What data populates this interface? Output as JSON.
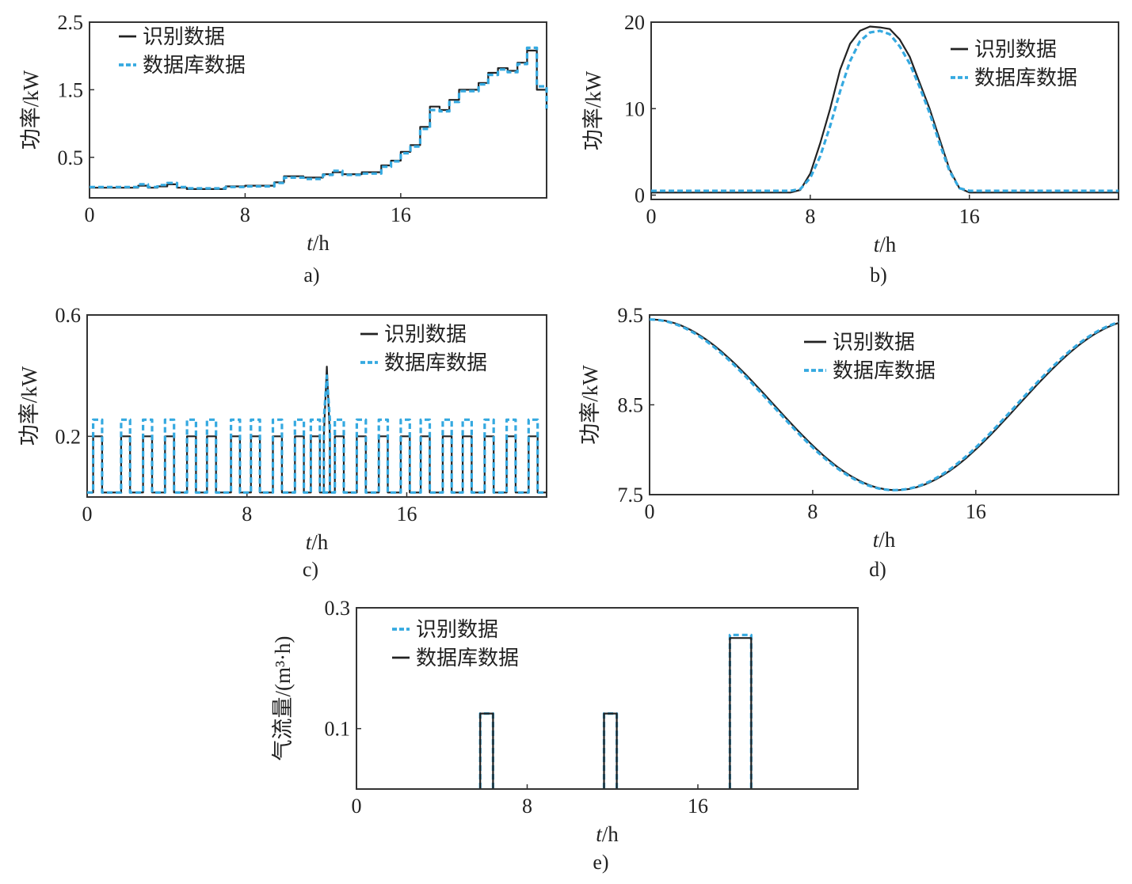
{
  "colors": {
    "identified": "#222222",
    "database": "#35a9e0",
    "frame": "#333333"
  },
  "chart_data": [
    {
      "id": "a",
      "caption": "a)",
      "type": "line",
      "xlabel_italic": "t",
      "xlabel_unit": "/h",
      "ylabel": "功率/kW",
      "xlim": [
        0,
        23.5
      ],
      "ylim": [
        -0.1,
        2.5
      ],
      "xticks": [
        0,
        8,
        16
      ],
      "yticks": [
        0.5,
        1.5,
        2.5
      ],
      "legend": [
        "识别数据",
        "数据库数据"
      ],
      "series": [
        {
          "name": "识别数据",
          "style": "identified",
          "x": [
            0,
            1,
            2,
            2.5,
            3,
            3.5,
            4,
            4.5,
            5,
            6,
            7,
            8,
            9,
            9.5,
            10,
            11,
            12,
            12.5,
            13,
            14,
            15,
            15.5,
            16,
            16.5,
            17,
            17.5,
            18,
            18.5,
            19,
            20,
            20.5,
            21,
            21.5,
            22,
            22.5,
            23,
            23.5
          ],
          "y": [
            0.05,
            0.05,
            0.05,
            0.08,
            0.05,
            0.07,
            0.1,
            0.05,
            0.03,
            0.03,
            0.07,
            0.08,
            0.08,
            0.13,
            0.22,
            0.2,
            0.25,
            0.28,
            0.25,
            0.28,
            0.38,
            0.45,
            0.58,
            0.68,
            0.95,
            1.25,
            1.2,
            1.35,
            1.5,
            1.6,
            1.75,
            1.82,
            1.78,
            1.9,
            2.08,
            1.5,
            1.2
          ]
        },
        {
          "name": "数据库数据",
          "style": "database",
          "x": [
            0,
            1,
            2,
            2.5,
            3,
            3.5,
            4,
            4.5,
            5,
            6,
            7,
            8,
            9,
            9.5,
            10,
            11,
            12,
            12.5,
            13,
            14,
            15,
            15.5,
            16,
            16.5,
            17,
            17.5,
            18,
            18.5,
            19,
            20,
            20.5,
            21,
            21.5,
            22,
            22.5,
            23,
            23.5
          ],
          "y": [
            0.06,
            0.06,
            0.06,
            0.1,
            0.06,
            0.09,
            0.12,
            0.06,
            0.04,
            0.04,
            0.06,
            0.07,
            0.07,
            0.12,
            0.2,
            0.18,
            0.24,
            0.3,
            0.24,
            0.26,
            0.36,
            0.44,
            0.56,
            0.66,
            0.92,
            1.2,
            1.18,
            1.32,
            1.48,
            1.58,
            1.72,
            1.8,
            1.76,
            1.88,
            2.12,
            1.55,
            1.22
          ]
        }
      ]
    },
    {
      "id": "b",
      "caption": "b)",
      "type": "line",
      "xlabel_italic": "t",
      "xlabel_unit": "/h",
      "ylabel": "功率/kW",
      "xlim": [
        0,
        23.5
      ],
      "ylim": [
        -0.5,
        20
      ],
      "xticks": [
        0,
        8,
        16
      ],
      "yticks": [
        0,
        10,
        20
      ],
      "legend": [
        "识别数据",
        "数据库数据"
      ],
      "series": [
        {
          "name": "识别数据",
          "style": "identified",
          "x": [
            0,
            7,
            7.5,
            8,
            8.5,
            9,
            9.5,
            10,
            10.5,
            11,
            11.5,
            12,
            12.5,
            13,
            13.5,
            14,
            14.5,
            15,
            15.5,
            16,
            23.5
          ],
          "y": [
            0.3,
            0.3,
            0.6,
            2.5,
            6,
            10,
            14.5,
            17.5,
            19,
            19.5,
            19.4,
            19.2,
            18,
            16,
            13,
            10,
            6.5,
            3,
            0.8,
            0.3,
            0.3
          ]
        },
        {
          "name": "数据库数据",
          "style": "database",
          "x": [
            0,
            7,
            7.5,
            8,
            8.5,
            9,
            9.5,
            10,
            10.5,
            11,
            11.5,
            12,
            12.5,
            13,
            13.5,
            14,
            14.5,
            15,
            15.5,
            16,
            23.5
          ],
          "y": [
            0.5,
            0.5,
            0.7,
            2,
            4.5,
            8,
            12,
            15.5,
            17.8,
            18.8,
            19,
            18.6,
            17.2,
            15.2,
            12.5,
            9.5,
            6,
            2.8,
            0.8,
            0.5,
            0.5
          ]
        }
      ]
    },
    {
      "id": "c",
      "caption": "c)",
      "type": "line",
      "xlabel_italic": "t",
      "xlabel_unit": "/h",
      "ylabel": "功率/kW",
      "xlim": [
        0,
        23
      ],
      "ylim": [
        0,
        0.6
      ],
      "xticks": [
        0,
        8,
        16
      ],
      "yticks": [
        0.2,
        0.6
      ],
      "legend": [
        "识别数据",
        "数据库数据"
      ],
      "pulses": {
        "starts": [
          0.3,
          1.7,
          2.8,
          3.9,
          5,
          6,
          7.2,
          8.2,
          9.3,
          10.4,
          11.2,
          12.4,
          13.5,
          14.6,
          15.7,
          16.7,
          17.8,
          18.8,
          19.9,
          21,
          22.1
        ],
        "width": 0.45,
        "low": 0.015,
        "high_identified": 0.2,
        "high_database": 0.255,
        "spike_center": 12.0,
        "spike_identified": 0.43,
        "spike_database": 0.4
      },
      "series": [
        {
          "name": "识别数据",
          "style": "identified"
        },
        {
          "name": "数据库数据",
          "style": "database"
        }
      ]
    },
    {
      "id": "d",
      "caption": "d)",
      "type": "line",
      "xlabel_italic": "t",
      "xlabel_unit": "/h",
      "ylabel": "功率/kW",
      "xlim": [
        0,
        23
      ],
      "ylim": [
        7.5,
        9.5
      ],
      "xticks": [
        0,
        8,
        16
      ],
      "yticks": [
        7.5,
        8.5,
        9.5
      ],
      "legend": [
        "识别数据",
        "数据库数据"
      ],
      "cosine": {
        "mid": 8.5,
        "amp": 0.95,
        "period": 24,
        "min_at": 12
      },
      "series": [
        {
          "name": "识别数据",
          "style": "identified",
          "shift": 0.1
        },
        {
          "name": "数据库数据",
          "style": "database",
          "shift": 0
        }
      ]
    },
    {
      "id": "e",
      "caption": "e)",
      "type": "line",
      "xlabel_italic": "t",
      "xlabel_unit": "/h",
      "ylabel": "气流量/(m³·h)",
      "xlim": [
        0,
        23.5
      ],
      "ylim": [
        0,
        0.3
      ],
      "xticks": [
        0,
        8,
        16
      ],
      "yticks": [
        0.1,
        0.3
      ],
      "legend": [
        "识别数据",
        "数据库数据"
      ],
      "blocks": [
        {
          "start": 5.8,
          "end": 6.4,
          "identified": 0.125,
          "database": 0.125
        },
        {
          "start": 11.6,
          "end": 12.2,
          "identified": 0.125,
          "database": 0.125
        },
        {
          "start": 17.5,
          "end": 18.5,
          "identified": 0.255,
          "database": 0.25
        }
      ],
      "series": [
        {
          "name": "识别数据",
          "style": "database"
        },
        {
          "name": "数据库数据",
          "style": "identified"
        }
      ]
    }
  ]
}
